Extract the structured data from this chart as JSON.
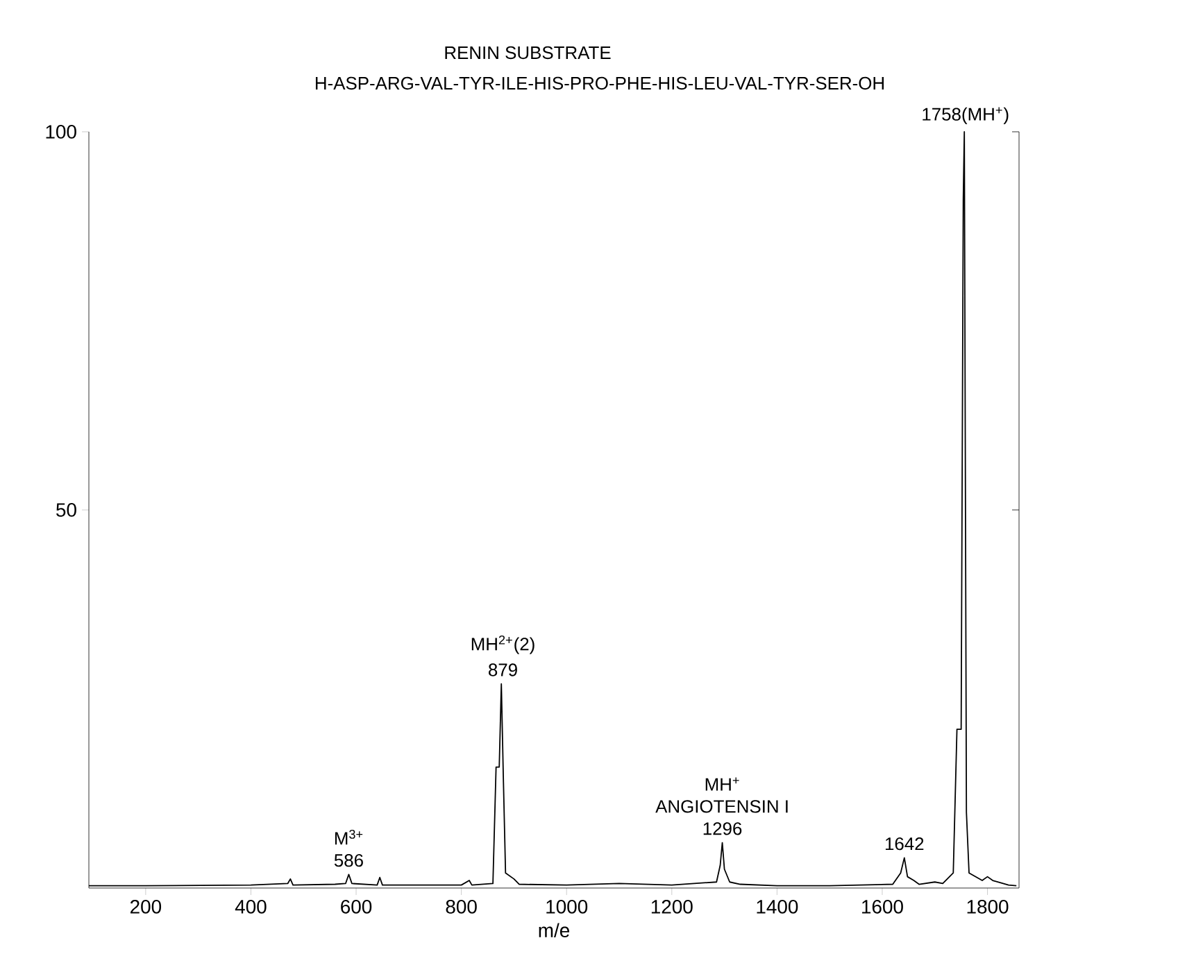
{
  "chart_data": {
    "type": "line",
    "title": "RENIN SUBSTRATE",
    "subtitle": "H-ASP-ARG-VAL-TYR-ILE-HIS-PRO-PHE-HIS-LEU-VAL-TYR-SER-OH",
    "xlabel": "m/e",
    "xlim": [
      92,
      1860
    ],
    "ylim": [
      0,
      100
    ],
    "xticks": [
      200,
      400,
      600,
      800,
      1000,
      1200,
      1400,
      1600,
      1800
    ],
    "yticks": [
      50,
      100
    ],
    "marker": "none",
    "line_style": "solid",
    "series": [
      {
        "color": "#000000",
        "x": [
          92,
          200,
          400,
          470,
          475,
          480,
          560,
          580,
          586,
          592,
          640,
          645,
          650,
          800,
          815,
          820,
          860,
          866,
          872,
          876,
          880,
          884,
          900,
          910,
          1000,
          1100,
          1200,
          1285,
          1292,
          1296,
          1300,
          1310,
          1330,
          1400,
          1500,
          1620,
          1635,
          1642,
          1648,
          1660,
          1670,
          1700,
          1715,
          1735,
          1742,
          1750,
          1754,
          1756,
          1760,
          1765,
          1790,
          1800,
          1810,
          1840,
          1855
        ],
        "values": [
          0.3,
          0.3,
          0.4,
          0.6,
          1.2,
          0.4,
          0.5,
          0.6,
          1.8,
          0.6,
          0.4,
          1.4,
          0.4,
          0.4,
          1.0,
          0.4,
          0.6,
          16,
          16,
          27,
          14,
          2,
          1.2,
          0.5,
          0.4,
          0.6,
          0.4,
          0.8,
          3,
          6,
          2.5,
          0.8,
          0.5,
          0.3,
          0.3,
          0.5,
          2,
          4,
          1.5,
          1,
          0.5,
          0.8,
          0.6,
          2,
          21,
          21,
          91,
          100,
          10,
          2,
          1,
          1.5,
          1,
          0.4,
          0.3
        ]
      }
    ],
    "annotations": [
      {
        "text": "1758(MH$^{+}$)",
        "x": 1758,
        "y": 100
      },
      {
        "text": "879",
        "x": 879,
        "y": 27
      },
      {
        "text": "MH$^{2+}$(2)",
        "x": 879,
        "y": 27
      },
      {
        "text": "586",
        "x": 586,
        "y": 1.8
      },
      {
        "text": "M$^{3+}$",
        "x": 586,
        "y": 1.8
      },
      {
        "text": "1296",
        "x": 1296,
        "y": 6
      },
      {
        "text": "ANGIOTENSIN I",
        "x": 1296,
        "y": 6
      },
      {
        "text": "MH$^{+}$",
        "x": 1296,
        "y": 6
      },
      {
        "text": "1642",
        "x": 1642,
        "y": 4
      }
    ]
  }
}
